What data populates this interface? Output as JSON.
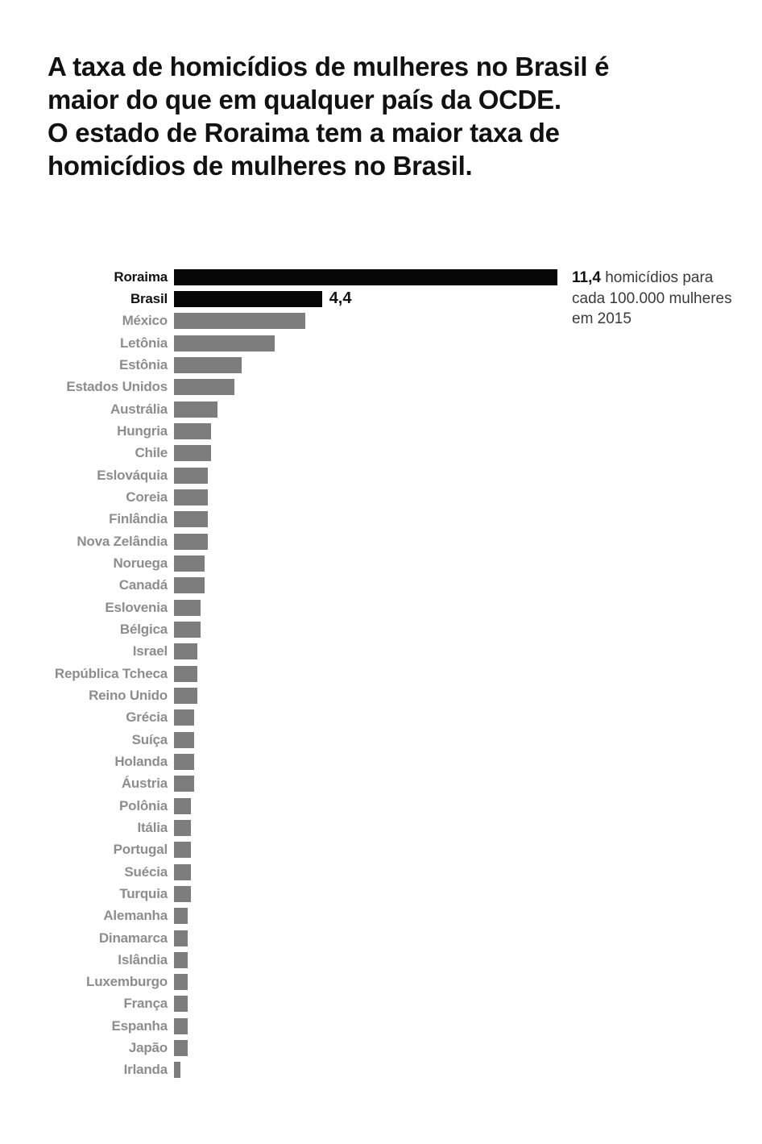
{
  "title": {
    "lines": [
      "A taxa de homicídios de mulheres no Brasil é",
      "maior do que em qualquer país da OCDE.",
      "O estado de Roraima tem a maior taxa de",
      "homicídios de mulheres no Brasil."
    ]
  },
  "annotation": {
    "bold_value": "11,4",
    "line1_rest": "homicídios para",
    "line2": "cada 100.000 mulheres",
    "line3": "em 2015"
  },
  "chart_data": {
    "type": "bar",
    "orientation": "horizontal",
    "categories": [
      "Roraima",
      "Brasil",
      "México",
      "Letônia",
      "Estônia",
      "Estados Unidos",
      "Austrália",
      "Hungria",
      "Chile",
      "Eslováquia",
      "Coreia",
      "Finlândia",
      "Nova Zelândia",
      "Noruega",
      "Canadá",
      "Eslovenia",
      "Bélgica",
      "Israel",
      "República Tcheca",
      "Reino Unido",
      "Grécia",
      "Suíça",
      "Holanda",
      "Áustria",
      "Polônia",
      "Itália",
      "Portugal",
      "Suécia",
      "Turquia",
      "Alemanha",
      "Dinamarca",
      "Islândia",
      "Luxemburgo",
      "França",
      "Espanha",
      "Japão",
      "Irlanda"
    ],
    "values": [
      11.4,
      4.4,
      3.9,
      3.0,
      2.0,
      1.8,
      1.3,
      1.1,
      1.1,
      1.0,
      1.0,
      1.0,
      1.0,
      0.9,
      0.9,
      0.8,
      0.8,
      0.7,
      0.7,
      0.7,
      0.6,
      0.6,
      0.6,
      0.6,
      0.5,
      0.5,
      0.5,
      0.5,
      0.5,
      0.4,
      0.4,
      0.4,
      0.4,
      0.4,
      0.4,
      0.4,
      0.2
    ],
    "emphasized": [
      "Roraima",
      "Brasil"
    ],
    "value_labels": {
      "Brasil": "4,4"
    },
    "xlim": [
      0,
      11.4
    ],
    "grid": false,
    "legend": false,
    "bar_color": "#7d7d7d",
    "emphasis_bar_color": "#060606",
    "label_color": "#8d8d8d",
    "emphasis_label_color": "#121212",
    "value_unit_note": "homicídios para cada 100.000 mulheres em 2015"
  }
}
